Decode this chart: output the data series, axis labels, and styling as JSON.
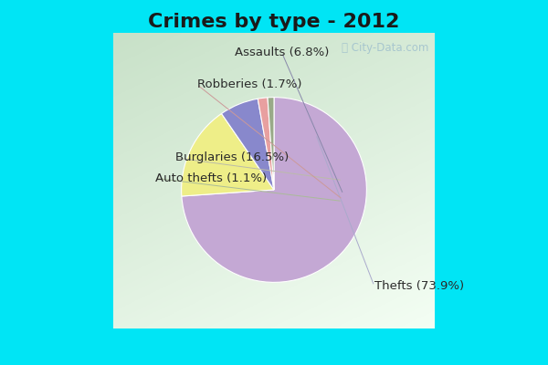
{
  "title": "Crimes by type - 2012",
  "values": [
    73.9,
    16.5,
    6.8,
    1.7,
    1.1
  ],
  "colors": [
    "#C4A8D4",
    "#EEEE88",
    "#8888CC",
    "#E8A0A0",
    "#99AA88"
  ],
  "background_fig": "#00E5F5",
  "label_texts": [
    "Thefts (73.9%)",
    "Burglaries (16.5%)",
    "Assaults (6.8%)",
    "Robberies (1.7%)",
    "Auto thefts (1.1%)"
  ],
  "title_fontsize": 16,
  "label_fontsize": 9.5,
  "startangle": 90,
  "watermark": "ⓘ City-Data.com"
}
